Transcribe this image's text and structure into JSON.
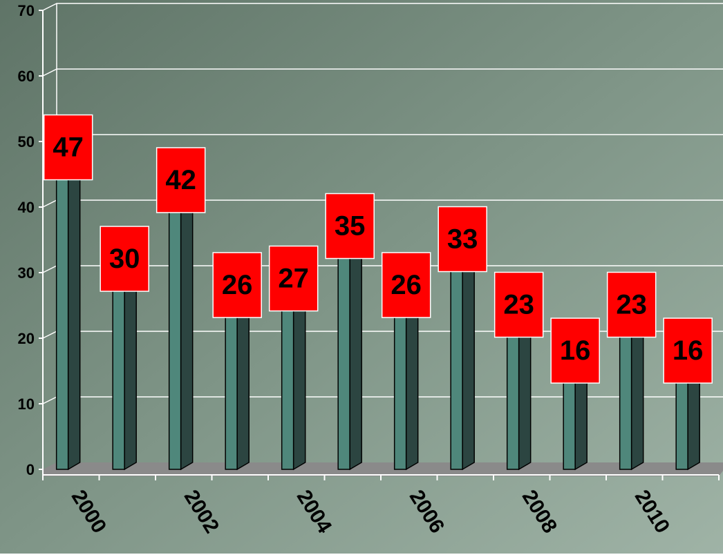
{
  "chart_data": {
    "type": "bar",
    "categories": [
      "2000",
      null,
      "2002",
      null,
      "2004",
      null,
      "2006",
      null,
      "2008",
      null,
      "2010",
      null
    ],
    "values": [
      47,
      30,
      42,
      26,
      27,
      35,
      26,
      33,
      23,
      16,
      23,
      16
    ],
    "color": "#4f877b",
    "label_color": "#ff0000",
    "ylim": [
      0,
      70
    ],
    "yticks": [
      0,
      10,
      20,
      30,
      40,
      50,
      60,
      70
    ],
    "grid": true
  }
}
